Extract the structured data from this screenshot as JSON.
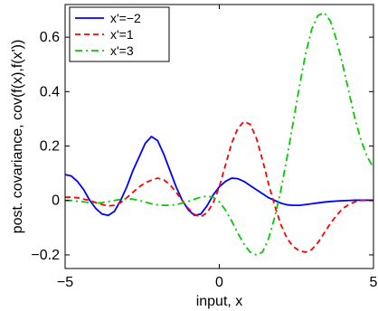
{
  "chart_data": {
    "type": "line",
    "title": "",
    "xlabel": "input, x",
    "ylabel": "post. covariance, cov(f(x),f(x'))",
    "xlim": [
      -5,
      5
    ],
    "ylim": [
      -0.25,
      0.72
    ],
    "xticks": [
      -5,
      0,
      5
    ],
    "xtick_labels": [
      "−5",
      "0",
      "5"
    ],
    "yticks": [
      -0.2,
      0,
      0.2,
      0.4,
      0.6
    ],
    "ytick_labels": [
      "−0.2",
      "0",
      "0.2",
      "0.4",
      "0.6"
    ],
    "grid": false,
    "legend_position": "top-left",
    "series": [
      {
        "name": "x'=−2",
        "color": "#0000ff",
        "dash": "solid",
        "points": [
          [
            -5,
            0.095
          ],
          [
            -4.8,
            0.09
          ],
          [
            -4.6,
            0.07
          ],
          [
            -4.4,
            0.04
          ],
          [
            -4.2,
            0.0
          ],
          [
            -4.0,
            -0.03
          ],
          [
            -3.8,
            -0.05
          ],
          [
            -3.6,
            -0.055
          ],
          [
            -3.4,
            -0.04
          ],
          [
            -3.2,
            0.0
          ],
          [
            -3.0,
            0.05
          ],
          [
            -2.8,
            0.11
          ],
          [
            -2.6,
            0.16
          ],
          [
            -2.4,
            0.21
          ],
          [
            -2.2,
            0.235
          ],
          [
            -2.0,
            0.22
          ],
          [
            -1.8,
            0.17
          ],
          [
            -1.6,
            0.11
          ],
          [
            -1.4,
            0.05
          ],
          [
            -1.2,
            0.0
          ],
          [
            -1.0,
            -0.035
          ],
          [
            -0.8,
            -0.055
          ],
          [
            -0.6,
            -0.05
          ],
          [
            -0.4,
            -0.02
          ],
          [
            -0.2,
            0.02
          ],
          [
            0.0,
            0.05
          ],
          [
            0.2,
            0.07
          ],
          [
            0.4,
            0.082
          ],
          [
            0.6,
            0.08
          ],
          [
            0.8,
            0.07
          ],
          [
            1.0,
            0.055
          ],
          [
            1.2,
            0.04
          ],
          [
            1.4,
            0.025
          ],
          [
            1.6,
            0.01
          ],
          [
            1.8,
            0.0
          ],
          [
            2.0,
            -0.01
          ],
          [
            2.2,
            -0.016
          ],
          [
            2.4,
            -0.018
          ],
          [
            2.6,
            -0.018
          ],
          [
            2.8,
            -0.015
          ],
          [
            3.0,
            -0.012
          ],
          [
            3.2,
            -0.009
          ],
          [
            3.4,
            -0.006
          ],
          [
            3.6,
            -0.004
          ],
          [
            3.8,
            -0.002
          ],
          [
            4.0,
            -0.001
          ],
          [
            4.2,
            0.0
          ],
          [
            4.4,
            0.001
          ],
          [
            4.6,
            0.001
          ],
          [
            4.8,
            0.001
          ],
          [
            5.0,
            0.001
          ]
        ]
      },
      {
        "name": "x'=1",
        "color": "#ff0000",
        "dash": "dashed",
        "points": [
          [
            -5,
            0.012
          ],
          [
            -4.8,
            0.012
          ],
          [
            -4.6,
            0.01
          ],
          [
            -4.4,
            0.005
          ],
          [
            -4.2,
            0.0
          ],
          [
            -4.0,
            -0.008
          ],
          [
            -3.8,
            -0.015
          ],
          [
            -3.6,
            -0.02
          ],
          [
            -3.4,
            -0.018
          ],
          [
            -3.2,
            -0.008
          ],
          [
            -3.0,
            0.01
          ],
          [
            -2.8,
            0.03
          ],
          [
            -2.6,
            0.05
          ],
          [
            -2.4,
            0.065
          ],
          [
            -2.2,
            0.075
          ],
          [
            -2.0,
            0.082
          ],
          [
            -1.8,
            0.076
          ],
          [
            -1.6,
            0.058
          ],
          [
            -1.4,
            0.03
          ],
          [
            -1.2,
            0.0
          ],
          [
            -1.0,
            -0.03
          ],
          [
            -0.8,
            -0.052
          ],
          [
            -0.6,
            -0.06
          ],
          [
            -0.4,
            -0.045
          ],
          [
            -0.2,
            -0.01
          ],
          [
            0.0,
            0.05
          ],
          [
            0.2,
            0.13
          ],
          [
            0.4,
            0.21
          ],
          [
            0.6,
            0.265
          ],
          [
            0.8,
            0.29
          ],
          [
            1.0,
            0.28
          ],
          [
            1.2,
            0.23
          ],
          [
            1.4,
            0.15
          ],
          [
            1.6,
            0.06
          ],
          [
            1.8,
            -0.02
          ],
          [
            2.0,
            -0.09
          ],
          [
            2.2,
            -0.14
          ],
          [
            2.4,
            -0.17
          ],
          [
            2.6,
            -0.185
          ],
          [
            2.8,
            -0.19
          ],
          [
            3.0,
            -0.18
          ],
          [
            3.2,
            -0.155
          ],
          [
            3.4,
            -0.12
          ],
          [
            3.6,
            -0.085
          ],
          [
            3.8,
            -0.055
          ],
          [
            4.0,
            -0.03
          ],
          [
            4.2,
            -0.015
          ],
          [
            4.4,
            -0.005
          ],
          [
            4.6,
            0.0
          ],
          [
            4.8,
            0.0
          ],
          [
            5.0,
            0.0
          ]
        ]
      },
      {
        "name": "x'=3",
        "color": "#00cc00",
        "dash": "dashdot",
        "points": [
          [
            -5,
            0.0
          ],
          [
            -4.8,
            0.0
          ],
          [
            -4.6,
            -0.003
          ],
          [
            -4.4,
            -0.005
          ],
          [
            -4.2,
            -0.008
          ],
          [
            -4.0,
            -0.01
          ],
          [
            -3.8,
            -0.008
          ],
          [
            -3.6,
            -0.004
          ],
          [
            -3.4,
            0.0
          ],
          [
            -3.2,
            0.004
          ],
          [
            -3.0,
            0.006
          ],
          [
            -2.8,
            0.005
          ],
          [
            -2.6,
            0.0
          ],
          [
            -2.4,
            -0.006
          ],
          [
            -2.2,
            -0.012
          ],
          [
            -2.0,
            -0.016
          ],
          [
            -1.8,
            -0.018
          ],
          [
            -1.6,
            -0.018
          ],
          [
            -1.4,
            -0.015
          ],
          [
            -1.2,
            -0.01
          ],
          [
            -1.0,
            -0.003
          ],
          [
            -0.8,
            0.005
          ],
          [
            -0.6,
            0.012
          ],
          [
            -0.4,
            0.016
          ],
          [
            -0.2,
            0.012
          ],
          [
            0.0,
            -0.005
          ],
          [
            0.2,
            -0.035
          ],
          [
            0.4,
            -0.075
          ],
          [
            0.6,
            -0.12
          ],
          [
            0.8,
            -0.16
          ],
          [
            1.0,
            -0.19
          ],
          [
            1.2,
            -0.2
          ],
          [
            1.4,
            -0.19
          ],
          [
            1.6,
            -0.14
          ],
          [
            1.8,
            -0.06
          ],
          [
            2.0,
            0.04
          ],
          [
            2.2,
            0.16
          ],
          [
            2.4,
            0.29
          ],
          [
            2.6,
            0.42
          ],
          [
            2.8,
            0.54
          ],
          [
            3.0,
            0.63
          ],
          [
            3.2,
            0.68
          ],
          [
            3.4,
            0.69
          ],
          [
            3.6,
            0.66
          ],
          [
            3.8,
            0.59
          ],
          [
            4.0,
            0.5
          ],
          [
            4.2,
            0.4
          ],
          [
            4.4,
            0.3
          ],
          [
            4.6,
            0.22
          ],
          [
            4.8,
            0.16
          ],
          [
            5.0,
            0.12
          ]
        ]
      }
    ]
  }
}
